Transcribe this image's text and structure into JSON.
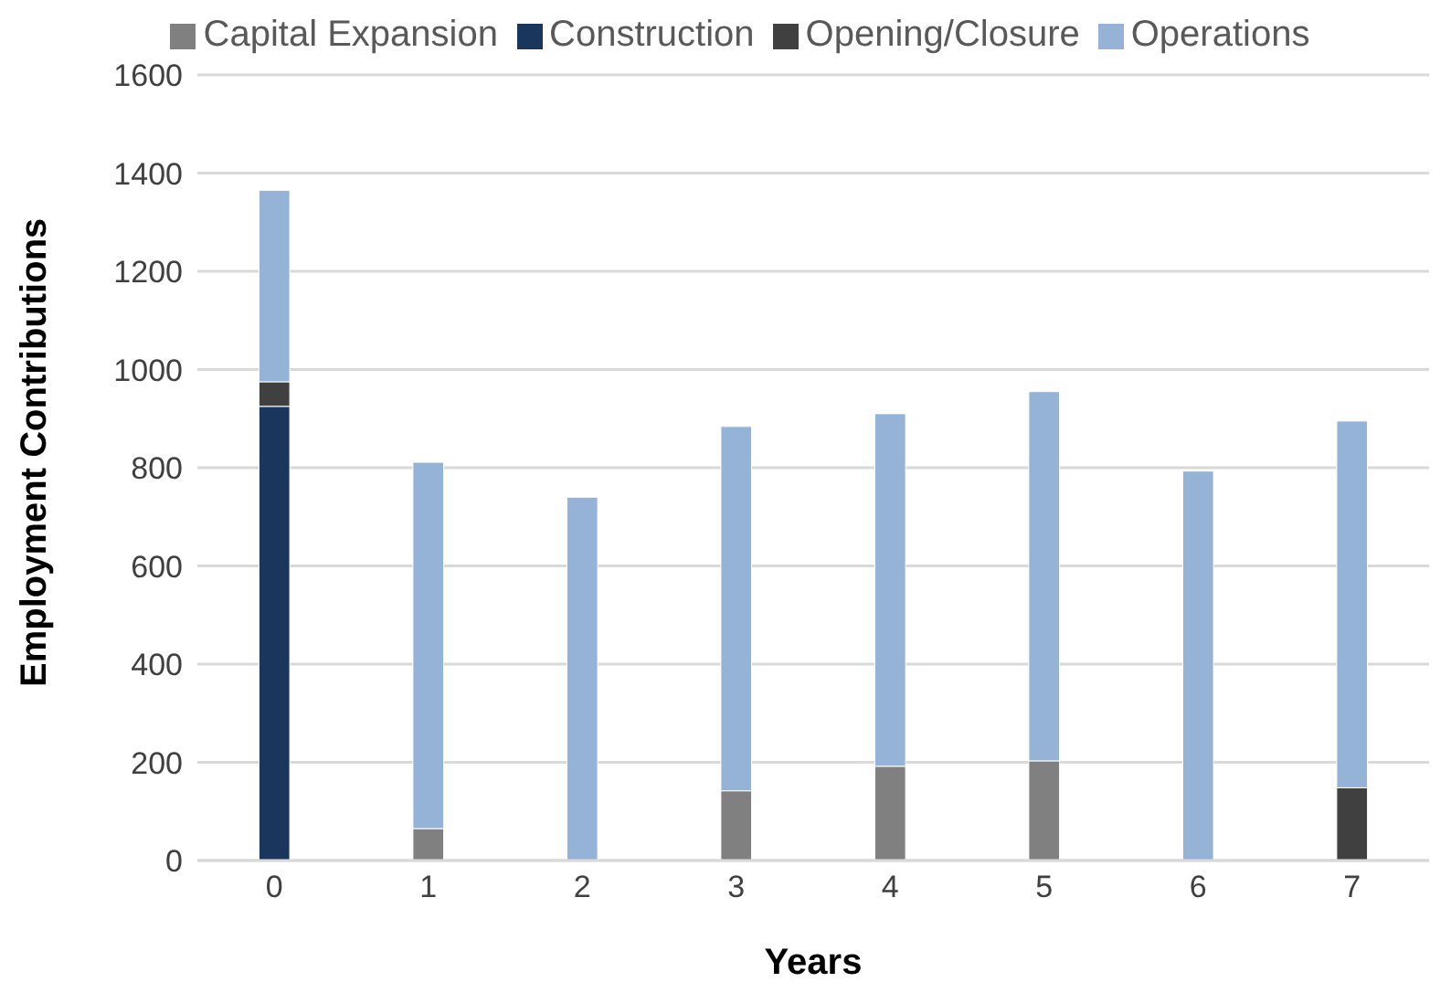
{
  "chart_data": {
    "type": "bar",
    "stacked": true,
    "xlabel": "Years",
    "ylabel": "Employment Contributions",
    "categories": [
      "0",
      "1",
      "2",
      "3",
      "4",
      "5",
      "6",
      "7"
    ],
    "series": [
      {
        "name": "Construction",
        "color": "#1b365d",
        "values": [
          925,
          0,
          0,
          0,
          0,
          0,
          0,
          0
        ]
      },
      {
        "name": "Capital Expansion",
        "color": "#808080",
        "values": [
          0,
          65,
          0,
          142,
          192,
          203,
          0,
          0
        ]
      },
      {
        "name": "Opening/Closure",
        "color": "#404040",
        "values": [
          50,
          0,
          0,
          0,
          0,
          0,
          0,
          148
        ]
      },
      {
        "name": "Operations",
        "color": "#95b3d7",
        "values": [
          390,
          746,
          740,
          742,
          718,
          752,
          793,
          747
        ]
      }
    ],
    "ylim": [
      0,
      1600
    ],
    "yticks": [
      0,
      200,
      400,
      600,
      800,
      1000,
      1200,
      1400,
      1600
    ],
    "grid": "y",
    "legend": "top"
  }
}
